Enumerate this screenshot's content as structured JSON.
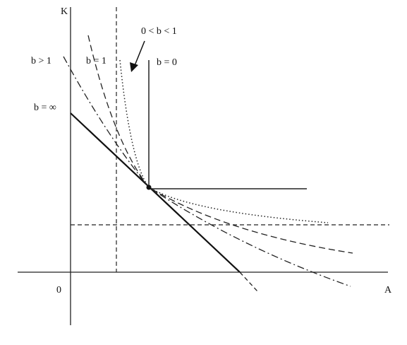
{
  "axes": {
    "y_label": "K",
    "x_label": "A",
    "origin": "0"
  },
  "curves": {
    "fixed_proportions": "b = 0",
    "cobb_douglas": "b = 1",
    "between": "0 < b < 1",
    "above_one": "b > 1",
    "linear": "b = ∞"
  }
}
